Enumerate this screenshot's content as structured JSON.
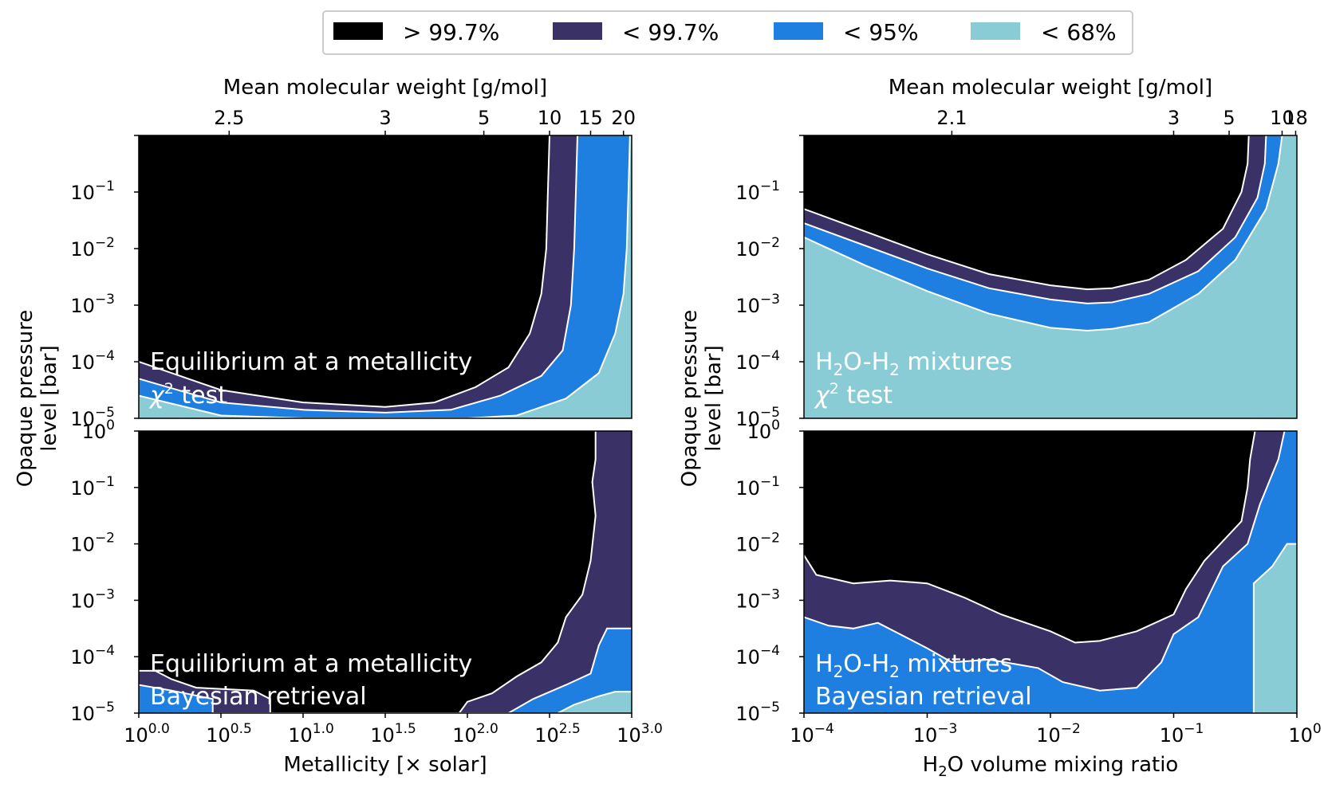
{
  "colors": {
    "gt997": "#000000",
    "lt997": "#3a3166",
    "lt95": "#1f7fe0",
    "lt68": "#89ccd6",
    "contour": "#ffffff"
  },
  "legend": [
    {
      "key": "gt997",
      "label": "> 99.7%"
    },
    {
      "key": "lt997",
      "label": "< 99.7%"
    },
    {
      "key": "lt95",
      "label": "< 95%"
    },
    {
      "key": "lt68",
      "label": "< 68%"
    }
  ],
  "y_axis": {
    "label_line1": "Opaque pressure",
    "label_line2": "level [bar]",
    "ticks": [
      {
        "exp": -5,
        "base": "10",
        "sup": "−5"
      },
      {
        "exp": -4,
        "base": "10",
        "sup": "−4"
      },
      {
        "exp": -3,
        "base": "10",
        "sup": "−3"
      },
      {
        "exp": -2,
        "base": "10",
        "sup": "−2"
      },
      {
        "exp": -1,
        "base": "10",
        "sup": "−1"
      },
      {
        "exp": 0,
        "base": "10",
        "sup": "0"
      }
    ]
  },
  "left_column": {
    "top_axis_label": "Mean molecular weight [g/mol]",
    "top_ticks": [
      {
        "label": "2.5",
        "at": 0.55
      },
      {
        "label": "3",
        "at": 1.5
      },
      {
        "label": "5",
        "at": 2.1
      },
      {
        "label": "10",
        "at": 2.5
      },
      {
        "label": "15",
        "at": 2.75
      },
      {
        "label": "20",
        "at": 2.95
      }
    ],
    "bottom_axis_label": "Metallicity [× solar]",
    "bottom_ticks": [
      {
        "at": 0.0,
        "base": "10",
        "sup": "0.0"
      },
      {
        "at": 0.5,
        "base": "10",
        "sup": "0.5"
      },
      {
        "at": 1.0,
        "base": "10",
        "sup": "1.0"
      },
      {
        "at": 1.5,
        "base": "10",
        "sup": "1.5"
      },
      {
        "at": 2.0,
        "base": "10",
        "sup": "2.0"
      },
      {
        "at": 2.5,
        "base": "10",
        "sup": "2.5"
      },
      {
        "at": 3.0,
        "base": "10",
        "sup": "3.0"
      }
    ]
  },
  "right_column": {
    "top_axis_label": "Mean molecular weight [g/mol]",
    "top_ticks": [
      {
        "label": "2.1",
        "at": -2.8
      },
      {
        "label": "3",
        "at": -1.0
      },
      {
        "label": "5",
        "at": -0.55
      },
      {
        "label": "10",
        "at": -0.12
      },
      {
        "label": "18",
        "at": -0.01
      }
    ],
    "bottom_axis_label_pre": "H",
    "bottom_axis_label_sub": "2",
    "bottom_axis_label_post": "O volume mixing ratio",
    "bottom_ticks": [
      {
        "at": -4,
        "base": "10",
        "sup": "−4"
      },
      {
        "at": -3,
        "base": "10",
        "sup": "−3"
      },
      {
        "at": -2,
        "base": "10",
        "sup": "−2"
      },
      {
        "at": -1,
        "base": "10",
        "sup": "−1"
      },
      {
        "at": 0,
        "base": "10",
        "sup": "0"
      }
    ]
  },
  "panels": {
    "tl": {
      "line1": "Equilibrium at a metallicity",
      "line2_sym": "χ",
      "line2_sup": "2",
      "line2_rest": " test"
    },
    "tr": {
      "line1_a": "H",
      "line1_sub1": "2",
      "line1_b": "O-H",
      "line1_sub2": "2",
      "line1_c": " mixtures",
      "line2_sym": "χ",
      "line2_sup": "2",
      "line2_rest": " test"
    },
    "bl": {
      "line1": "Equilibrium at a metallicity",
      "line2": "Bayesian retrieval"
    },
    "br": {
      "line1_a": "H",
      "line1_sub1": "2",
      "line1_b": "O-H",
      "line1_sub2": "2",
      "line1_c": " mixtures",
      "line2": "Bayesian retrieval"
    }
  },
  "chart_data": [
    {
      "type": "contour",
      "id": "tl",
      "title": "Equilibrium at a metallicity χ2 test",
      "xlabel": "Metallicity [× solar]",
      "x_scale": "log10",
      "xlim": [
        0.0,
        3.0
      ],
      "ylabel": "Opaque pressure level [bar]",
      "y_scale": "log10",
      "ylim": [
        -5,
        0
      ],
      "levels": [
        {
          "key": "lt997",
          "boundary": [
            [
              0,
              -4.0
            ],
            [
              0.5,
              -4.5
            ],
            [
              1.0,
              -4.72
            ],
            [
              1.5,
              -4.8
            ],
            [
              1.8,
              -4.72
            ],
            [
              2.05,
              -4.45
            ],
            [
              2.25,
              -4.1
            ],
            [
              2.38,
              -3.5
            ],
            [
              2.45,
              -2.8
            ],
            [
              2.48,
              -2.0
            ],
            [
              2.49,
              -1.0
            ],
            [
              2.5,
              0
            ]
          ]
        },
        {
          "key": "lt95",
          "boundary": [
            [
              0,
              -4.3
            ],
            [
              0.5,
              -4.72
            ],
            [
              1.0,
              -4.85
            ],
            [
              1.5,
              -4.9
            ],
            [
              1.9,
              -4.85
            ],
            [
              2.2,
              -4.6
            ],
            [
              2.45,
              -4.25
            ],
            [
              2.58,
              -3.8
            ],
            [
              2.63,
              -3.0
            ],
            [
              2.65,
              -2.0
            ],
            [
              2.66,
              -1.0
            ],
            [
              2.67,
              0
            ]
          ]
        },
        {
          "key": "lt68",
          "boundary": [
            [
              0,
              -4.6
            ],
            [
              0.5,
              -4.95
            ],
            [
              1.0,
              -5.0
            ],
            [
              2.0,
              -5.0
            ],
            [
              2.3,
              -4.95
            ],
            [
              2.6,
              -4.65
            ],
            [
              2.8,
              -4.2
            ],
            [
              2.9,
              -3.5
            ],
            [
              2.95,
              -2.8
            ],
            [
              2.97,
              -2.0
            ],
            [
              2.98,
              -1.0
            ],
            [
              2.99,
              0
            ]
          ]
        }
      ]
    },
    {
      "type": "contour",
      "id": "tr",
      "title": "H2O-H2 mixtures χ2 test",
      "xlabel": "H2O volume mixing ratio",
      "x_scale": "log10",
      "xlim": [
        -4,
        0
      ],
      "ylabel": "Opaque pressure level [bar]",
      "y_scale": "log10",
      "ylim": [
        -5,
        0
      ],
      "levels": [
        {
          "key": "lt997",
          "boundary": [
            [
              -4,
              -1.3
            ],
            [
              -3.5,
              -1.7
            ],
            [
              -3.0,
              -2.1
            ],
            [
              -2.5,
              -2.45
            ],
            [
              -2.0,
              -2.65
            ],
            [
              -1.7,
              -2.72
            ],
            [
              -1.5,
              -2.7
            ],
            [
              -1.2,
              -2.55
            ],
            [
              -0.9,
              -2.2
            ],
            [
              -0.6,
              -1.65
            ],
            [
              -0.45,
              -1.0
            ],
            [
              -0.4,
              -0.5
            ],
            [
              -0.39,
              0
            ]
          ]
        },
        {
          "key": "lt95",
          "boundary": [
            [
              -4,
              -1.55
            ],
            [
              -3.5,
              -1.95
            ],
            [
              -3.0,
              -2.35
            ],
            [
              -2.5,
              -2.7
            ],
            [
              -2.0,
              -2.9
            ],
            [
              -1.7,
              -2.97
            ],
            [
              -1.5,
              -2.95
            ],
            [
              -1.2,
              -2.8
            ],
            [
              -0.8,
              -2.4
            ],
            [
              -0.5,
              -1.8
            ],
            [
              -0.32,
              -1.1
            ],
            [
              -0.26,
              -0.5
            ],
            [
              -0.25,
              0
            ]
          ]
        },
        {
          "key": "lt68",
          "boundary": [
            [
              -4,
              -1.8
            ],
            [
              -3.5,
              -2.3
            ],
            [
              -3.0,
              -2.75
            ],
            [
              -2.5,
              -3.15
            ],
            [
              -2.0,
              -3.4
            ],
            [
              -1.7,
              -3.45
            ],
            [
              -1.5,
              -3.42
            ],
            [
              -1.2,
              -3.3
            ],
            [
              -0.8,
              -2.8
            ],
            [
              -0.5,
              -2.2
            ],
            [
              -0.25,
              -1.3
            ],
            [
              -0.15,
              -0.5
            ],
            [
              -0.12,
              0
            ]
          ]
        }
      ]
    },
    {
      "type": "contour",
      "id": "bl",
      "title": "Equilibrium at a metallicity Bayesian retrieval",
      "xlabel": "Metallicity [× solar]",
      "x_scale": "log10",
      "xlim": [
        0.0,
        3.0
      ],
      "ylabel": "Opaque pressure level [bar]",
      "y_scale": "log10",
      "ylim": [
        -5,
        0
      ],
      "levels": [
        {
          "key": "lt997",
          "boundary": [
            [
              0,
              -4.25
            ],
            [
              0.1,
              -4.25
            ],
            [
              0.2,
              -4.4
            ],
            [
              0.35,
              -4.55
            ],
            [
              0.7,
              -4.6
            ],
            [
              0.8,
              -4.75
            ],
            [
              0.8,
              -5.0
            ],
            [
              1.95,
              -5.0
            ],
            [
              2.0,
              -4.8
            ],
            [
              2.15,
              -4.65
            ],
            [
              2.3,
              -4.35
            ],
            [
              2.45,
              -4.1
            ],
            [
              2.55,
              -3.75
            ],
            [
              2.6,
              -3.3
            ],
            [
              2.7,
              -2.9
            ],
            [
              2.75,
              -2.3
            ],
            [
              2.78,
              -1.5
            ],
            [
              2.76,
              -0.9
            ],
            [
              2.78,
              -0.5
            ],
            [
              2.78,
              0
            ]
          ]
        },
        {
          "key": "lt95",
          "boundary": [
            [
              0,
              -4.5
            ],
            [
              0.2,
              -4.6
            ],
            [
              0.45,
              -4.75
            ],
            [
              0.45,
              -5.0
            ],
            [
              2.25,
              -5.0
            ],
            [
              2.4,
              -4.75
            ],
            [
              2.6,
              -4.5
            ],
            [
              2.75,
              -4.3
            ],
            [
              2.8,
              -3.8
            ],
            [
              2.85,
              -3.5
            ],
            [
              3.0,
              -3.5
            ]
          ]
        },
        {
          "key": "lt68",
          "boundary": [
            [
              2.55,
              -5.0
            ],
            [
              2.65,
              -4.85
            ],
            [
              2.8,
              -4.7
            ],
            [
              2.9,
              -4.62
            ],
            [
              3.0,
              -4.62
            ]
          ]
        }
      ]
    },
    {
      "type": "contour",
      "id": "br",
      "title": "H2O-H2 mixtures Bayesian retrieval",
      "xlabel": "H2O volume mixing ratio",
      "x_scale": "log10",
      "xlim": [
        -4,
        0
      ],
      "ylabel": "Opaque pressure level [bar]",
      "y_scale": "log10",
      "ylim": [
        -5,
        0
      ],
      "levels": [
        {
          "key": "lt997",
          "boundary": [
            [
              -4,
              -2.2
            ],
            [
              -3.9,
              -2.55
            ],
            [
              -3.6,
              -2.7
            ],
            [
              -3.3,
              -2.65
            ],
            [
              -3.0,
              -2.7
            ],
            [
              -2.7,
              -2.95
            ],
            [
              -2.4,
              -3.25
            ],
            [
              -2.0,
              -3.55
            ],
            [
              -1.8,
              -3.75
            ],
            [
              -1.6,
              -3.72
            ],
            [
              -1.3,
              -3.55
            ],
            [
              -1.0,
              -3.25
            ],
            [
              -0.9,
              -2.8
            ],
            [
              -0.75,
              -2.3
            ],
            [
              -0.6,
              -1.95
            ],
            [
              -0.45,
              -1.6
            ],
            [
              -0.4,
              -1.0
            ],
            [
              -0.38,
              -0.5
            ],
            [
              -0.34,
              0
            ]
          ]
        },
        {
          "key": "lt95",
          "boundary": [
            [
              -4,
              -3.3
            ],
            [
              -3.8,
              -3.45
            ],
            [
              -3.6,
              -3.5
            ],
            [
              -3.4,
              -3.4
            ],
            [
              -3.0,
              -3.85
            ],
            [
              -2.8,
              -4.1
            ],
            [
              -2.5,
              -4.05
            ],
            [
              -2.1,
              -4.2
            ],
            [
              -1.9,
              -4.45
            ],
            [
              -1.6,
              -4.6
            ],
            [
              -1.3,
              -4.55
            ],
            [
              -1.1,
              -4.1
            ],
            [
              -1.0,
              -3.6
            ],
            [
              -0.8,
              -3.3
            ],
            [
              -0.6,
              -2.4
            ],
            [
              -0.4,
              -2.0
            ],
            [
              -0.3,
              -1.3
            ],
            [
              -0.15,
              -0.5
            ],
            [
              -0.1,
              0
            ]
          ]
        },
        {
          "key": "lt68",
          "boundary": [
            [
              -0.35,
              -5.0
            ],
            [
              -0.35,
              -2.7
            ],
            [
              -0.2,
              -2.4
            ],
            [
              -0.08,
              -2.0
            ],
            [
              0,
              -2.0
            ]
          ]
        }
      ]
    }
  ]
}
